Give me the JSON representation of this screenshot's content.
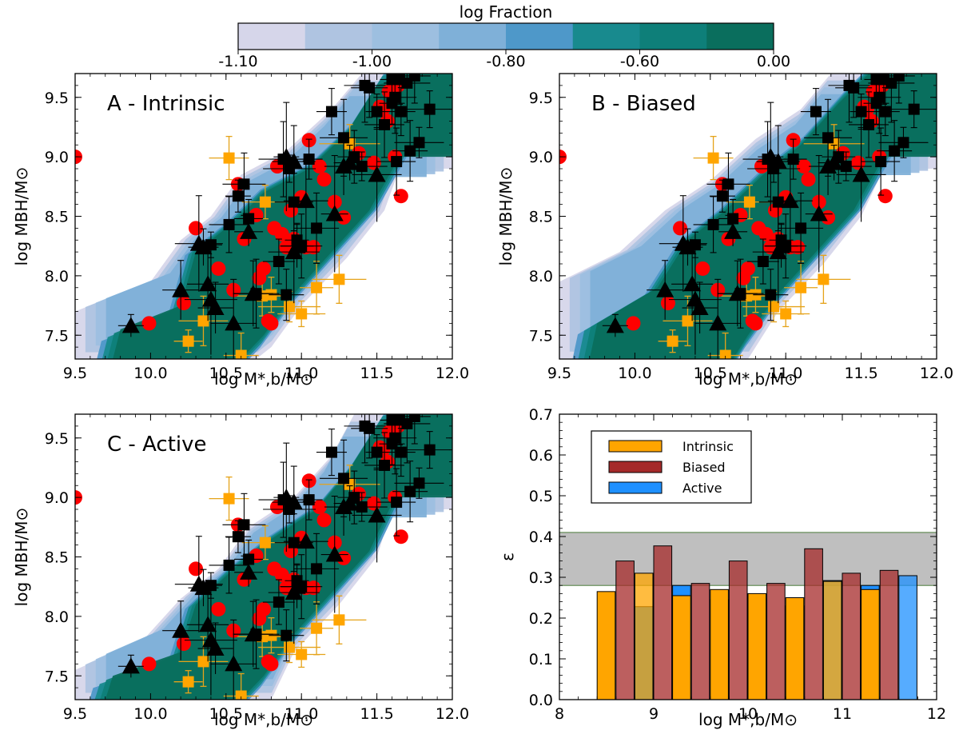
{
  "chart_data": [
    {
      "id": "A",
      "type": "scatter",
      "title": "A - Intrinsic",
      "xlabel": "log M*,b/M⊙",
      "ylabel": "log MBH/M⊙",
      "xlim": [
        9.5,
        12.0
      ],
      "ylim": [
        7.3,
        9.7
      ],
      "xticks": [
        "9.5",
        "10.0",
        "10.5",
        "11.0",
        "11.5",
        "12.0"
      ],
      "yticks": [
        "7.5",
        "8.0",
        "8.5",
        "9.0",
        "9.5"
      ],
      "contour_outer": [
        [
          9.5,
          7.3
        ],
        [
          9.5,
          7.7
        ],
        [
          10.0,
          7.95
        ],
        [
          10.2,
          8.3
        ],
        [
          10.4,
          8.5
        ],
        [
          10.6,
          8.85
        ],
        [
          10.9,
          9.05
        ],
        [
          11.2,
          9.4
        ],
        [
          11.4,
          9.7
        ],
        [
          12.0,
          9.7
        ],
        [
          12.0,
          8.9
        ],
        [
          11.65,
          8.9
        ],
        [
          11.55,
          8.55
        ],
        [
          11.3,
          8.15
        ],
        [
          11.0,
          7.75
        ],
        [
          10.8,
          7.4
        ],
        [
          10.7,
          7.3
        ]
      ],
      "contour_inner": [
        [
          9.75,
          7.3
        ],
        [
          9.8,
          7.55
        ],
        [
          10.2,
          7.75
        ],
        [
          10.3,
          8.2
        ],
        [
          10.55,
          8.45
        ],
        [
          10.75,
          8.7
        ],
        [
          11.05,
          8.9
        ],
        [
          11.3,
          9.2
        ],
        [
          11.5,
          9.6
        ],
        [
          11.7,
          9.7
        ],
        [
          12.0,
          9.7
        ],
        [
          12.0,
          9.0
        ],
        [
          11.65,
          9.0
        ],
        [
          11.45,
          8.55
        ],
        [
          11.2,
          8.2
        ],
        [
          10.95,
          7.85
        ],
        [
          10.75,
          7.5
        ],
        [
          10.6,
          7.3
        ]
      ]
    },
    {
      "id": "B",
      "type": "scatter",
      "title": "B - Biased",
      "xlabel": "log M*,b/M⊙",
      "ylabel": "log MBH/M⊙",
      "xlim": [
        9.5,
        12.0
      ],
      "ylim": [
        7.3,
        9.7
      ],
      "xticks": [
        "9.5",
        "10.0",
        "10.5",
        "11.0",
        "11.5",
        "12.0"
      ],
      "yticks": [
        "7.5",
        "8.0",
        "8.5",
        "9.0",
        "9.5"
      ],
      "contour_outer": [
        [
          9.5,
          7.3
        ],
        [
          9.5,
          7.95
        ],
        [
          9.9,
          8.2
        ],
        [
          10.2,
          8.55
        ],
        [
          10.5,
          8.8
        ],
        [
          10.8,
          9.15
        ],
        [
          11.1,
          9.4
        ],
        [
          11.3,
          9.7
        ],
        [
          12.0,
          9.7
        ],
        [
          12.0,
          8.9
        ],
        [
          11.65,
          8.9
        ],
        [
          11.5,
          8.5
        ],
        [
          11.25,
          8.1
        ],
        [
          10.95,
          7.7
        ],
        [
          10.75,
          7.3
        ]
      ],
      "contour_inner": [
        [
          9.7,
          7.3
        ],
        [
          9.75,
          7.6
        ],
        [
          10.15,
          7.9
        ],
        [
          10.35,
          8.3
        ],
        [
          10.6,
          8.55
        ],
        [
          10.85,
          8.85
        ],
        [
          11.1,
          9.1
        ],
        [
          11.35,
          9.45
        ],
        [
          11.55,
          9.7
        ],
        [
          12.0,
          9.7
        ],
        [
          12.0,
          9.0
        ],
        [
          11.65,
          9.0
        ],
        [
          11.45,
          8.55
        ],
        [
          11.2,
          8.2
        ],
        [
          10.95,
          7.85
        ],
        [
          10.75,
          7.5
        ],
        [
          10.65,
          7.3
        ]
      ]
    },
    {
      "id": "C",
      "type": "scatter",
      "title": "C - Active",
      "xlabel": "log M*,b/M⊙",
      "ylabel": "log MBH/M⊙",
      "xlim": [
        9.5,
        12.0
      ],
      "ylim": [
        7.3,
        9.7
      ],
      "xticks": [
        "9.5",
        "10.0",
        "10.5",
        "11.0",
        "11.5",
        "12.0"
      ],
      "yticks": [
        "7.5",
        "8.0",
        "8.5",
        "9.0",
        "9.5"
      ],
      "contour_outer": [
        [
          9.5,
          7.3
        ],
        [
          9.5,
          7.55
        ],
        [
          9.95,
          7.8
        ],
        [
          10.2,
          8.15
        ],
        [
          10.45,
          8.4
        ],
        [
          10.65,
          8.75
        ],
        [
          10.95,
          9.0
        ],
        [
          11.2,
          9.35
        ],
        [
          11.35,
          9.7
        ],
        [
          12.0,
          9.7
        ],
        [
          12.0,
          8.9
        ],
        [
          11.6,
          8.9
        ],
        [
          11.5,
          8.5
        ],
        [
          11.25,
          8.1
        ],
        [
          10.95,
          7.7
        ],
        [
          10.8,
          7.3
        ]
      ],
      "contour_inner": [
        [
          9.7,
          7.3
        ],
        [
          9.75,
          7.5
        ],
        [
          10.2,
          7.7
        ],
        [
          10.3,
          8.1
        ],
        [
          10.55,
          8.4
        ],
        [
          10.8,
          8.65
        ],
        [
          11.1,
          8.9
        ],
        [
          11.3,
          9.2
        ],
        [
          11.5,
          9.6
        ],
        [
          11.7,
          9.7
        ],
        [
          12.0,
          9.7
        ],
        [
          12.0,
          9.0
        ],
        [
          11.62,
          9.0
        ],
        [
          11.45,
          8.55
        ],
        [
          11.2,
          8.2
        ],
        [
          10.95,
          7.85
        ],
        [
          10.75,
          7.5
        ],
        [
          10.6,
          7.3
        ]
      ]
    },
    {
      "id": "D",
      "type": "bar",
      "xlabel": "log M*,b/M⊙",
      "ylabel": "ε",
      "xlim": [
        8,
        12
      ],
      "ylim": [
        0.0,
        0.7
      ],
      "xticks": [
        "8",
        "9",
        "10",
        "11",
        "12"
      ],
      "yticks": [
        "0.0",
        "0.1",
        "0.2",
        "0.3",
        "0.4",
        "0.5",
        "0.6",
        "0.7"
      ],
      "shaded_band": [
        0.28,
        0.41
      ],
      "bin_centers": [
        8.6,
        9.0,
        9.4,
        9.8,
        10.2,
        10.6,
        11.0,
        11.4
      ],
      "series": [
        {
          "name": "Intrinsic",
          "color": "#ffa500",
          "values": [
            0.265,
            0.31,
            0.255,
            0.27,
            0.26,
            0.25,
            0.29,
            0.27
          ]
        },
        {
          "name": "Biased",
          "color": "#a52a2a",
          "values": [
            0.34,
            0.377,
            0.285,
            0.34,
            0.285,
            0.37,
            0.31,
            0.317
          ]
        },
        {
          "name": "Active",
          "color": "#1e90ff",
          "values": [
            0.228,
            0.28,
            0.245,
            0.247,
            0.23,
            0.292,
            0.28,
            0.304
          ]
        }
      ],
      "legend_position": "upper-left"
    }
  ],
  "points": {
    "red_circles": [
      [
        9.5,
        9.0
      ],
      [
        9.99,
        7.6
      ],
      [
        10.22,
        7.77
      ],
      [
        10.3,
        8.4
      ],
      [
        10.45,
        8.06
      ],
      [
        10.55,
        7.88
      ],
      [
        10.58,
        8.77
      ],
      [
        10.62,
        8.31
      ],
      [
        10.7,
        8.51
      ],
      [
        10.72,
        7.98
      ],
      [
        10.75,
        8.06
      ],
      [
        10.78,
        7.62
      ],
      [
        10.8,
        7.6
      ],
      [
        10.82,
        8.4
      ],
      [
        10.84,
        8.92
      ],
      [
        10.87,
        8.35
      ],
      [
        10.9,
        8.24
      ],
      [
        10.93,
        8.55
      ],
      [
        10.95,
        8.31
      ],
      [
        11.0,
        8.66
      ],
      [
        11.03,
        8.24
      ],
      [
        11.05,
        9.14
      ],
      [
        11.08,
        8.24
      ],
      [
        11.12,
        8.92
      ],
      [
        11.15,
        8.81
      ],
      [
        11.22,
        8.62
      ],
      [
        11.28,
        8.49
      ],
      [
        11.38,
        9.03
      ],
      [
        11.48,
        8.95
      ],
      [
        11.54,
        9.4
      ],
      [
        11.58,
        9.55
      ],
      [
        11.62,
        9.0
      ],
      [
        11.64,
        9.6
      ],
      [
        11.66,
        8.67
      ],
      [
        11.52,
        9.42
      ],
      [
        11.57,
        9.3
      ]
    ],
    "black_squares": [
      [
        10.4,
        8.26
      ],
      [
        10.52,
        8.43
      ],
      [
        10.58,
        8.67
      ],
      [
        10.62,
        8.77
      ],
      [
        10.65,
        8.48
      ],
      [
        10.7,
        7.85
      ],
      [
        10.85,
        8.12
      ],
      [
        10.88,
        8.98
      ],
      [
        10.9,
        7.84
      ],
      [
        10.92,
        8.9
      ],
      [
        10.95,
        8.62
      ],
      [
        10.97,
        8.3
      ],
      [
        11.0,
        8.25
      ],
      [
        11.05,
        8.98
      ],
      [
        11.1,
        8.4
      ],
      [
        11.2,
        9.38
      ],
      [
        11.28,
        9.16
      ],
      [
        11.35,
        9.0
      ],
      [
        11.4,
        8.92
      ],
      [
        11.45,
        9.58
      ],
      [
        11.5,
        9.38
      ],
      [
        11.55,
        9.27
      ],
      [
        11.6,
        9.45
      ],
      [
        11.62,
        9.5
      ],
      [
        11.66,
        9.38
      ],
      [
        11.7,
        9.62
      ],
      [
        11.75,
        9.68
      ],
      [
        11.78,
        9.12
      ],
      [
        11.72,
        9.05
      ],
      [
        11.85,
        9.4
      ],
      [
        11.63,
        8.96
      ],
      [
        11.6,
        9.65
      ],
      [
        11.42,
        9.6
      ],
      [
        11.65,
        9.65
      ]
    ],
    "black_triangles": [
      [
        9.87,
        7.58
      ],
      [
        10.2,
        7.88
      ],
      [
        10.32,
        8.27
      ],
      [
        10.35,
        8.24
      ],
      [
        10.38,
        7.93
      ],
      [
        10.4,
        7.8
      ],
      [
        10.43,
        7.73
      ],
      [
        10.55,
        7.6
      ],
      [
        10.65,
        8.37
      ],
      [
        10.68,
        7.85
      ],
      [
        10.95,
        8.2
      ],
      [
        10.97,
        8.25
      ],
      [
        11.03,
        8.63
      ],
      [
        11.22,
        8.52
      ],
      [
        11.28,
        8.92
      ],
      [
        11.5,
        8.85
      ],
      [
        11.32,
        8.95
      ],
      [
        10.95,
        8.96
      ],
      [
        10.9,
        9.0
      ]
    ],
    "orange_squares": [
      [
        10.25,
        7.45
      ],
      [
        10.35,
        7.62
      ],
      [
        10.6,
        7.33
      ],
      [
        10.74,
        7.83
      ],
      [
        10.8,
        7.84
      ],
      [
        10.92,
        7.74
      ],
      [
        11.0,
        7.68
      ],
      [
        11.1,
        7.9
      ],
      [
        11.25,
        7.97
      ],
      [
        10.52,
        8.99
      ],
      [
        11.32,
        9.11
      ],
      [
        10.76,
        8.62
      ]
    ]
  },
  "colorbar": {
    "label": "log Fraction",
    "tick_labels": [
      "-1.10",
      "-1.00",
      "-0.80",
      "-0.60",
      "0.00"
    ],
    "colors": [
      "#d6d6ea",
      "#afc4e1",
      "#9dbfe0",
      "#7fb0d8",
      "#4e98c9",
      "#188a8e",
      "#0e7f79",
      "#0a6e5d"
    ]
  }
}
